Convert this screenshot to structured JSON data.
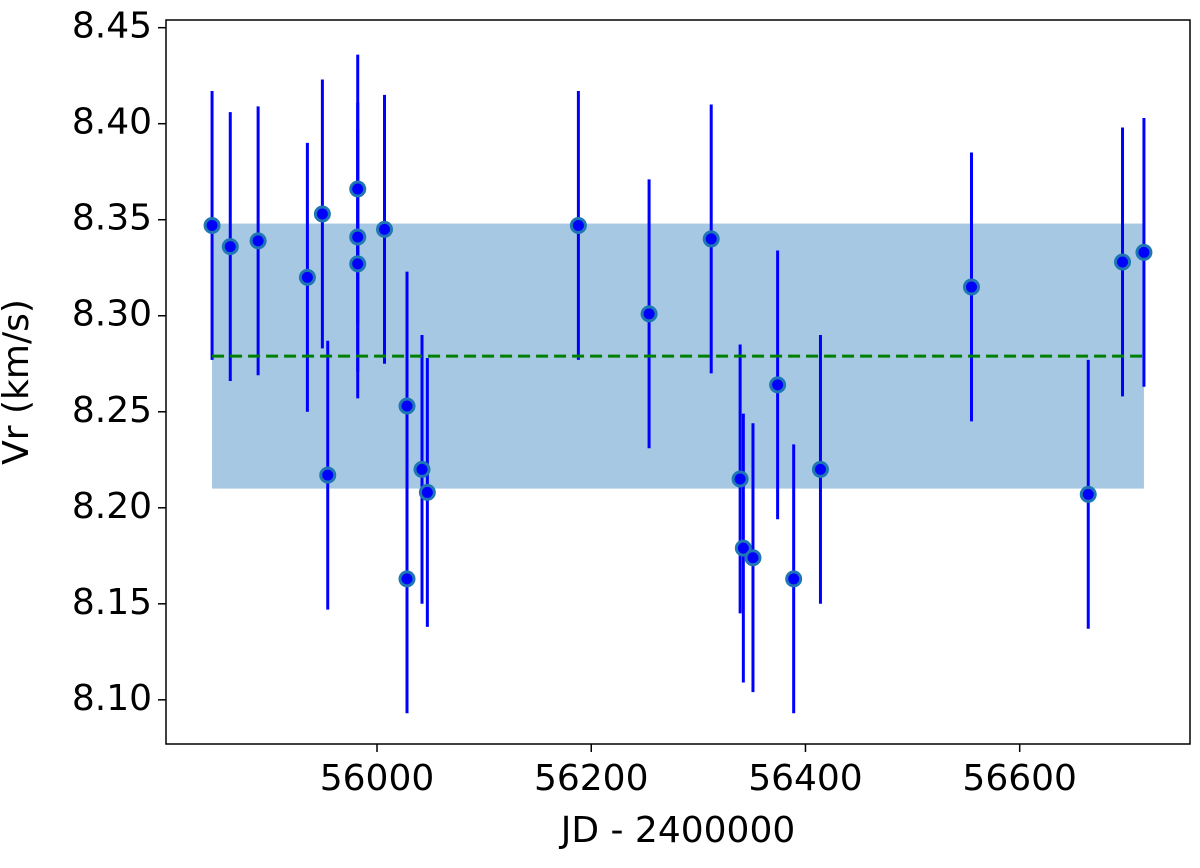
{
  "chart_data": {
    "type": "errorbar-scatter",
    "xlabel": "JD - 2400000",
    "ylabel": "Vr (km/s)",
    "xlim": [
      55803,
      56759
    ],
    "ylim": [
      8.077,
      8.454
    ],
    "xticks": [
      56000,
      56200,
      56400,
      56600
    ],
    "yticks": [
      {
        "value": 8.1,
        "label": "8.10"
      },
      {
        "value": 8.15,
        "label": "8.15"
      },
      {
        "value": 8.2,
        "label": "8.20"
      },
      {
        "value": 8.25,
        "label": "8.25"
      },
      {
        "value": 8.3,
        "label": "8.30"
      },
      {
        "value": 8.35,
        "label": "8.35"
      },
      {
        "value": 8.4,
        "label": "8.40"
      },
      {
        "value": 8.45,
        "label": "8.45"
      }
    ],
    "x": [
      55846,
      55863,
      55889,
      55935,
      55949,
      55954,
      55982,
      55982,
      55982,
      56007,
      56028,
      56028,
      56042,
      56047,
      56188,
      56254,
      56312,
      56339,
      56342,
      56351,
      56374,
      56389,
      56414,
      56555,
      56664,
      56696,
      56716
    ],
    "series": [
      {
        "color": "#0000ff",
        "edge_color": "#1f77b4",
        "error_color": "#0000ff",
        "values": [
          8.347,
          8.336,
          8.339,
          8.32,
          8.353,
          8.217,
          8.366,
          8.341,
          8.327,
          8.345,
          8.253,
          8.163,
          8.22,
          8.208,
          8.347,
          8.301,
          8.34,
          8.215,
          8.179,
          8.174,
          8.264,
          8.163,
          8.22,
          8.315,
          8.207,
          8.328,
          8.333
        ],
        "errors": [
          0.07,
          0.07,
          0.07,
          0.07,
          0.07,
          0.07,
          0.07,
          0.07,
          0.07,
          0.07,
          0.07,
          0.07,
          0.07,
          0.07,
          0.07,
          0.07,
          0.07,
          0.07,
          0.07,
          0.07,
          0.07,
          0.07,
          0.07,
          0.07,
          0.07,
          0.07,
          0.07
        ]
      }
    ],
    "mean": 8.279,
    "mean_color": "#008000",
    "band": [
      8.21,
      8.348
    ],
    "band_color": "#a6c8e2"
  }
}
